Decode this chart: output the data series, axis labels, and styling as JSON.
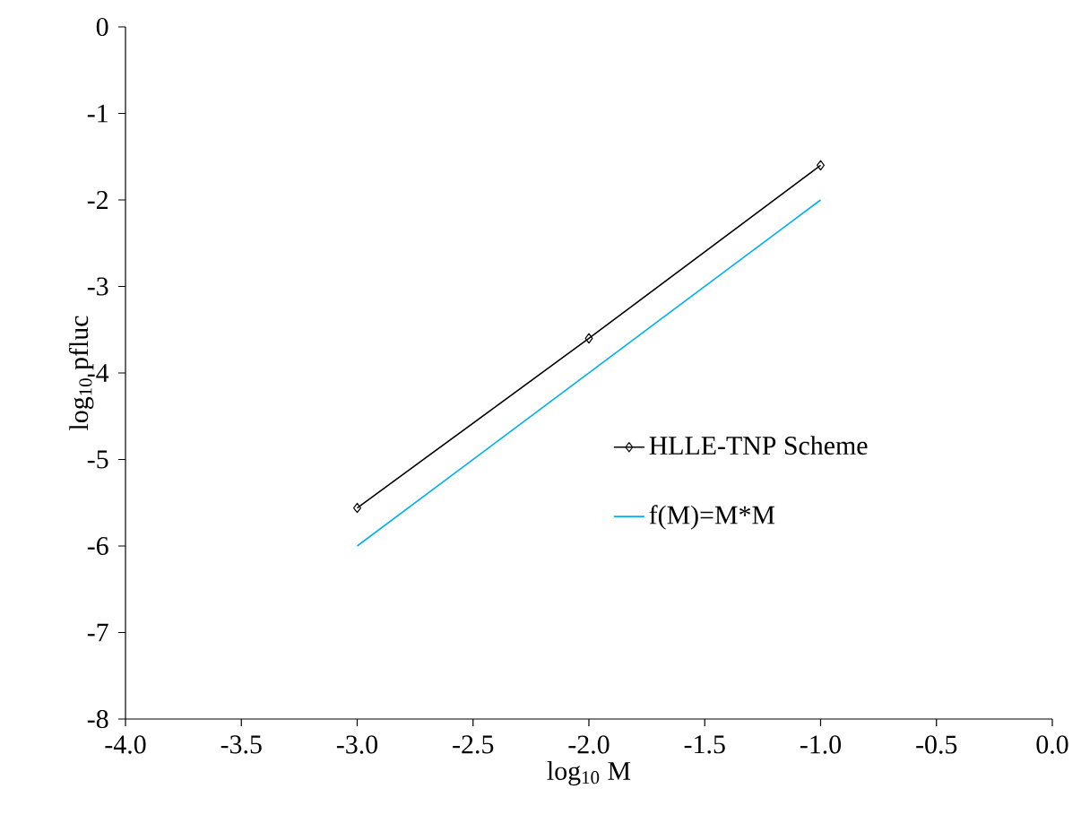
{
  "chart_data": {
    "type": "line",
    "xlabel": "log$_{10}$ M",
    "ylabel": "log$_{10}$ pfluc",
    "xlim": [
      -4,
      0
    ],
    "ylim": [
      -8,
      0
    ],
    "xticks": [
      {
        "value": -4,
        "label": "-4.0"
      },
      {
        "value": -3.5,
        "label": "-3.5"
      },
      {
        "value": -3,
        "label": "-3.0"
      },
      {
        "value": -2.5,
        "label": "-2.5"
      },
      {
        "value": -2,
        "label": "-2.0"
      },
      {
        "value": -1.5,
        "label": "-1.5"
      },
      {
        "value": -1,
        "label": "-1.0"
      },
      {
        "value": -0.5,
        "label": "-0.5"
      },
      {
        "value": 0,
        "label": "0.0"
      }
    ],
    "yticks": [
      -8,
      -7,
      -6,
      -5,
      -4,
      -3,
      -2,
      -1,
      0
    ],
    "grid": false,
    "legend": "right",
    "series": [
      {
        "name": "HLLE-TNP Scheme",
        "color": "#000000",
        "marker": "diamond",
        "x": [
          -3,
          -2,
          -1
        ],
        "values": [
          -5.56,
          -3.6,
          -1.6
        ]
      },
      {
        "name": "f(M)=M*M",
        "color": "#00b0f0",
        "marker": "none",
        "x": [
          -3,
          -1
        ],
        "values": [
          -6,
          -2
        ]
      }
    ]
  }
}
